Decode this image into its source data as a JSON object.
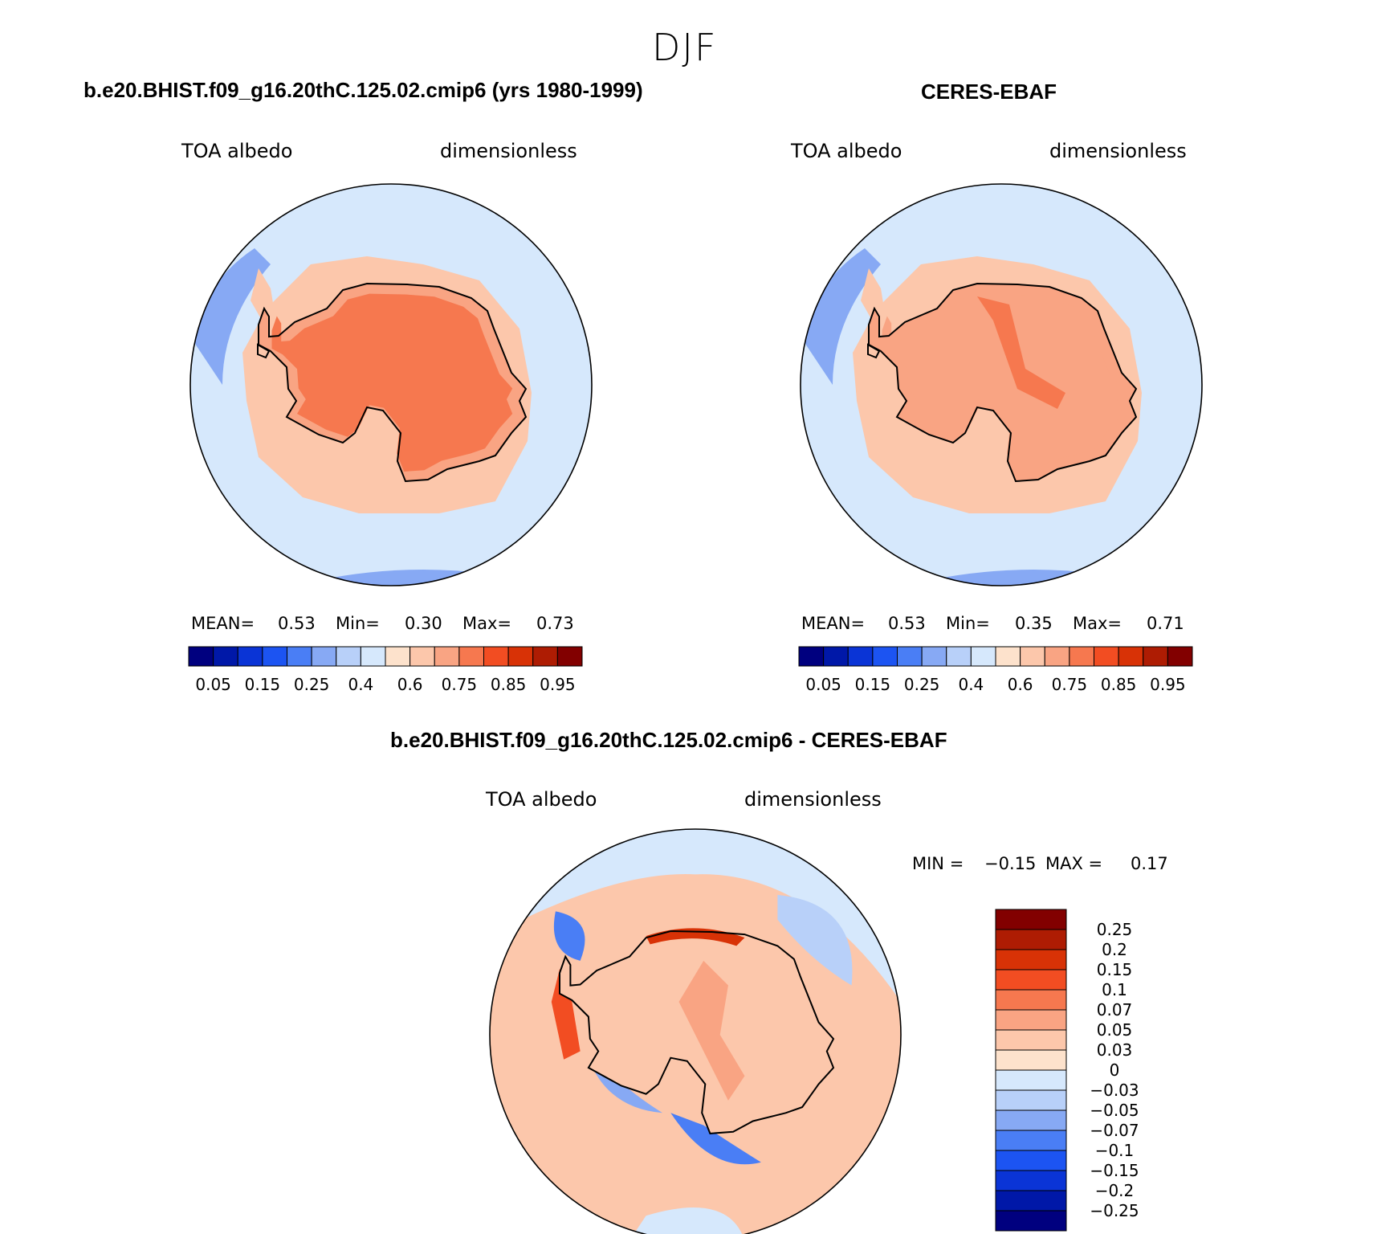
{
  "figure": {
    "season": "DJF"
  },
  "colors": {
    "abs_scale": [
      "#00007f",
      "#0018a8",
      "#0a34d6",
      "#1c54f2",
      "#4a7ef5",
      "#87a9f4",
      "#b8d0f9",
      "#d6e8fc",
      "#fde2cc",
      "#fcc7ab",
      "#f9a483",
      "#f6784f",
      "#f24d22",
      "#d83206",
      "#ae1c03",
      "#820000"
    ],
    "diff_scale": [
      "#00007f",
      "#0018a8",
      "#0a34d6",
      "#1c54f2",
      "#4a7ef5",
      "#87a9f4",
      "#b8d0f9",
      "#d6e8fc",
      "#fde2cc",
      "#fcc7ab",
      "#f9a483",
      "#f6784f",
      "#f24d22",
      "#d83206",
      "#ae1c03",
      "#820000"
    ]
  },
  "chart_data": [
    {
      "type": "heatmap",
      "projection": "south polar stereographic",
      "title": "b.e20.BHIST.f09_g16.20thC.125.02.cmip6 (yrs 1980-1999)",
      "variable": "TOA albedo",
      "units": "dimensionless",
      "stats": {
        "mean_label": "MEAN=",
        "mean": "0.53",
        "min_label": "Min=",
        "min": "0.30",
        "max_label": "Max=",
        "max": "0.73"
      },
      "colorbar": {
        "orientation": "horizontal",
        "tick_labels": [
          "0.05",
          "0.15",
          "0.25",
          "0.4",
          "0.6",
          "0.75",
          "0.85",
          "0.95"
        ],
        "n_colors": 16
      },
      "fields": {
        "ice_sheet": 0.7,
        "coast_band": 0.65,
        "ocean_ring": 0.62,
        "open_ocean": 0.45,
        "low_ocean": 0.35
      }
    },
    {
      "type": "heatmap",
      "projection": "south polar stereographic",
      "title": "CERES-EBAF",
      "variable": "TOA albedo",
      "units": "dimensionless",
      "stats": {
        "mean_label": "MEAN=",
        "mean": "0.53",
        "min_label": "Min=",
        "min": "0.35",
        "max_label": "Max=",
        "max": "0.71"
      },
      "colorbar": {
        "orientation": "horizontal",
        "tick_labels": [
          "0.05",
          "0.15",
          "0.25",
          "0.4",
          "0.6",
          "0.75",
          "0.85",
          "0.95"
        ],
        "n_colors": 16
      },
      "fields": {
        "ice_sheet": 0.65,
        "plateau_band": 0.7,
        "ocean_ring": 0.62,
        "open_ocean": 0.45,
        "low_ocean": 0.35
      }
    },
    {
      "type": "heatmap",
      "projection": "south polar stereographic",
      "title": "b.e20.BHIST.f09_g16.20thC.125.02.cmip6 - CERES-EBAF",
      "variable": "TOA albedo",
      "units": "dimensionless",
      "stats": {
        "min_label": "MIN =",
        "min": "−0.15",
        "max_label": "MAX =",
        "max": "0.17"
      },
      "colorbar": {
        "orientation": "vertical",
        "tick_labels": [
          "0.25",
          "0.2",
          "0.15",
          "0.1",
          "0.07",
          "0.05",
          "0.03",
          "0",
          "−0.03",
          "−0.05",
          "−0.07",
          "−0.1",
          "−0.15",
          "−0.2",
          "−0.25"
        ],
        "n_colors": 16
      },
      "fields": {
        "background_positive": 0.03,
        "background_negative": -0.03,
        "interior": 0.04,
        "band": 0.06,
        "peninsula_pos": 0.1,
        "ross_neg": -0.1,
        "weddell_neg": -0.07,
        "coast_pos": 0.15
      }
    }
  ]
}
